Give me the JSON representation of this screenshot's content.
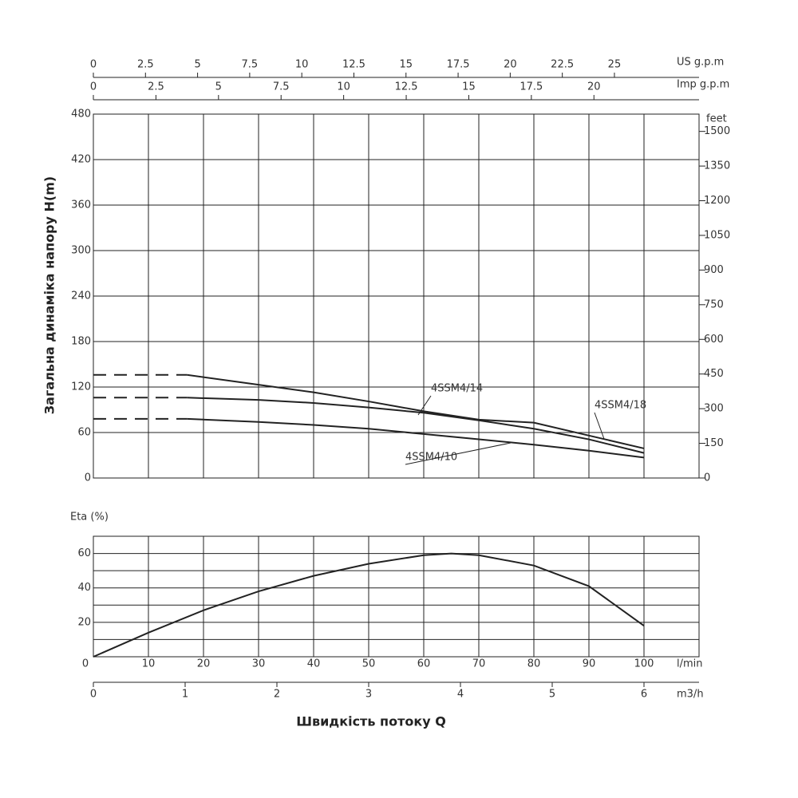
{
  "chart_data": [
    {
      "type": "line",
      "y_label": "Загальна динаміка напору H(m)",
      "x": [
        0,
        17,
        30,
        40,
        50,
        60,
        70,
        80,
        90,
        100
      ],
      "xlim": [
        0,
        110
      ],
      "xticks": [
        10,
        20,
        30,
        40,
        50,
        60,
        70,
        80,
        90,
        100
      ],
      "series": [
        {
          "name": "4SSM4/18",
          "color": "#222222",
          "values": [
            136,
            136,
            123,
            113,
            101,
            88,
            77,
            73,
            56,
            39
          ]
        },
        {
          "name": "4SSM4/14",
          "color": "#222222",
          "values": [
            106,
            106,
            103,
            99,
            93,
            86,
            76,
            65,
            51,
            33
          ]
        },
        {
          "name": "4SSM4/10",
          "color": "#222222",
          "values": [
            78,
            78,
            74,
            70,
            65,
            58,
            51,
            44,
            36,
            27
          ]
        }
      ],
      "ylim": [
        0,
        480
      ],
      "yticks": [
        0,
        60,
        120,
        180,
        240,
        300,
        360,
        420,
        480
      ],
      "y2_label": "feet",
      "y2lim": [
        0,
        1574.8
      ],
      "y2ticks": [
        0,
        150,
        300,
        450,
        600,
        750,
        900,
        1050,
        1200,
        1350,
        1500
      ],
      "top_axes": [
        {
          "label": "US g.p.m",
          "xlim": [
            0,
            29.06
          ],
          "xticks": [
            0,
            2.5,
            5,
            7.5,
            10,
            12.5,
            15,
            17.5,
            20,
            22.5,
            25
          ]
        },
        {
          "label": "Imp g.p.m",
          "xlim": [
            0,
            24.2
          ],
          "xticks": [
            0,
            2.5,
            5,
            7.5,
            10,
            12.5,
            15,
            17.5,
            20
          ]
        }
      ],
      "grid": true
    },
    {
      "type": "line",
      "y_label": "Eta (%)",
      "x": [
        0,
        10,
        20,
        30,
        40,
        50,
        60,
        65,
        70,
        80,
        90,
        100
      ],
      "values": [
        0,
        14,
        27,
        38,
        47,
        54,
        59,
        60,
        59,
        53,
        41,
        18
      ],
      "color": "#222222",
      "ylim": [
        0,
        70
      ],
      "yticks": [
        20,
        40,
        60
      ],
      "minor_yticks": [
        10,
        30,
        50
      ],
      "x_label": "Швидкість потоку Q",
      "x_unit": "l/min",
      "xlim": [
        0,
        110
      ],
      "xticks": [
        0,
        10,
        20,
        30,
        40,
        50,
        60,
        70,
        80,
        90,
        100
      ],
      "bottom_axis": {
        "label": "m3/h",
        "xlim": [
          0,
          6.6
        ],
        "xticks": [
          0,
          1,
          2,
          3,
          4,
          5,
          6
        ]
      },
      "grid": true
    }
  ]
}
